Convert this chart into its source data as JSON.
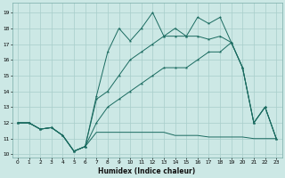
{
  "xlabel": "Humidex (Indice chaleur)",
  "xlim": [
    -0.5,
    23.5
  ],
  "ylim": [
    9.8,
    19.6
  ],
  "yticks": [
    10,
    11,
    12,
    13,
    14,
    15,
    16,
    17,
    18,
    19
  ],
  "xticks": [
    0,
    1,
    2,
    3,
    4,
    5,
    6,
    7,
    8,
    9,
    10,
    11,
    12,
    13,
    14,
    15,
    16,
    17,
    18,
    19,
    20,
    21,
    22,
    23
  ],
  "bg_color": "#cce8e5",
  "grid_color": "#a8ceca",
  "line_color": "#1a6b60",
  "line_flat": {
    "x": [
      0,
      1,
      2,
      3,
      4,
      5,
      6,
      7,
      8,
      9,
      10,
      11,
      12,
      13,
      14,
      15,
      16,
      17,
      18,
      19,
      20,
      21,
      22,
      23
    ],
    "y": [
      12.0,
      12.0,
      11.6,
      11.7,
      11.2,
      10.2,
      10.5,
      11.4,
      11.4,
      11.4,
      11.4,
      11.4,
      11.4,
      11.4,
      11.2,
      11.2,
      11.2,
      11.1,
      11.1,
      11.1,
      11.1,
      11.0,
      11.0,
      11.0
    ]
  },
  "line_top": {
    "x": [
      0,
      1,
      2,
      3,
      4,
      5,
      6,
      7,
      8,
      9,
      10,
      11,
      12,
      13,
      14,
      15,
      16,
      17,
      18,
      19,
      20,
      21,
      22,
      23
    ],
    "y": [
      12.0,
      12.0,
      11.6,
      11.7,
      11.2,
      10.2,
      10.5,
      13.7,
      16.5,
      18.0,
      17.2,
      18.0,
      19.0,
      17.5,
      18.0,
      17.5,
      18.7,
      18.3,
      18.7,
      17.1,
      15.5,
      12.0,
      13.0,
      11.0
    ]
  },
  "line_mid": {
    "x": [
      0,
      1,
      2,
      3,
      4,
      5,
      6,
      7,
      8,
      9,
      10,
      11,
      12,
      13,
      14,
      15,
      16,
      17,
      18,
      19,
      20,
      21,
      22,
      23
    ],
    "y": [
      12.0,
      12.0,
      11.6,
      11.7,
      11.2,
      10.2,
      10.5,
      13.5,
      14.0,
      15.0,
      16.0,
      16.5,
      17.0,
      17.5,
      17.5,
      17.5,
      17.5,
      17.3,
      17.5,
      17.1,
      15.5,
      12.0,
      13.0,
      11.0
    ]
  },
  "line_low": {
    "x": [
      0,
      1,
      2,
      3,
      4,
      5,
      6,
      7,
      8,
      9,
      10,
      11,
      12,
      13,
      14,
      15,
      16,
      17,
      18,
      19,
      20,
      21,
      22,
      23
    ],
    "y": [
      12.0,
      12.0,
      11.6,
      11.7,
      11.2,
      10.2,
      10.5,
      12.0,
      13.0,
      13.5,
      14.0,
      14.5,
      15.0,
      15.5,
      15.5,
      15.5,
      16.0,
      16.5,
      16.5,
      17.1,
      15.5,
      12.0,
      13.0,
      11.0
    ]
  }
}
